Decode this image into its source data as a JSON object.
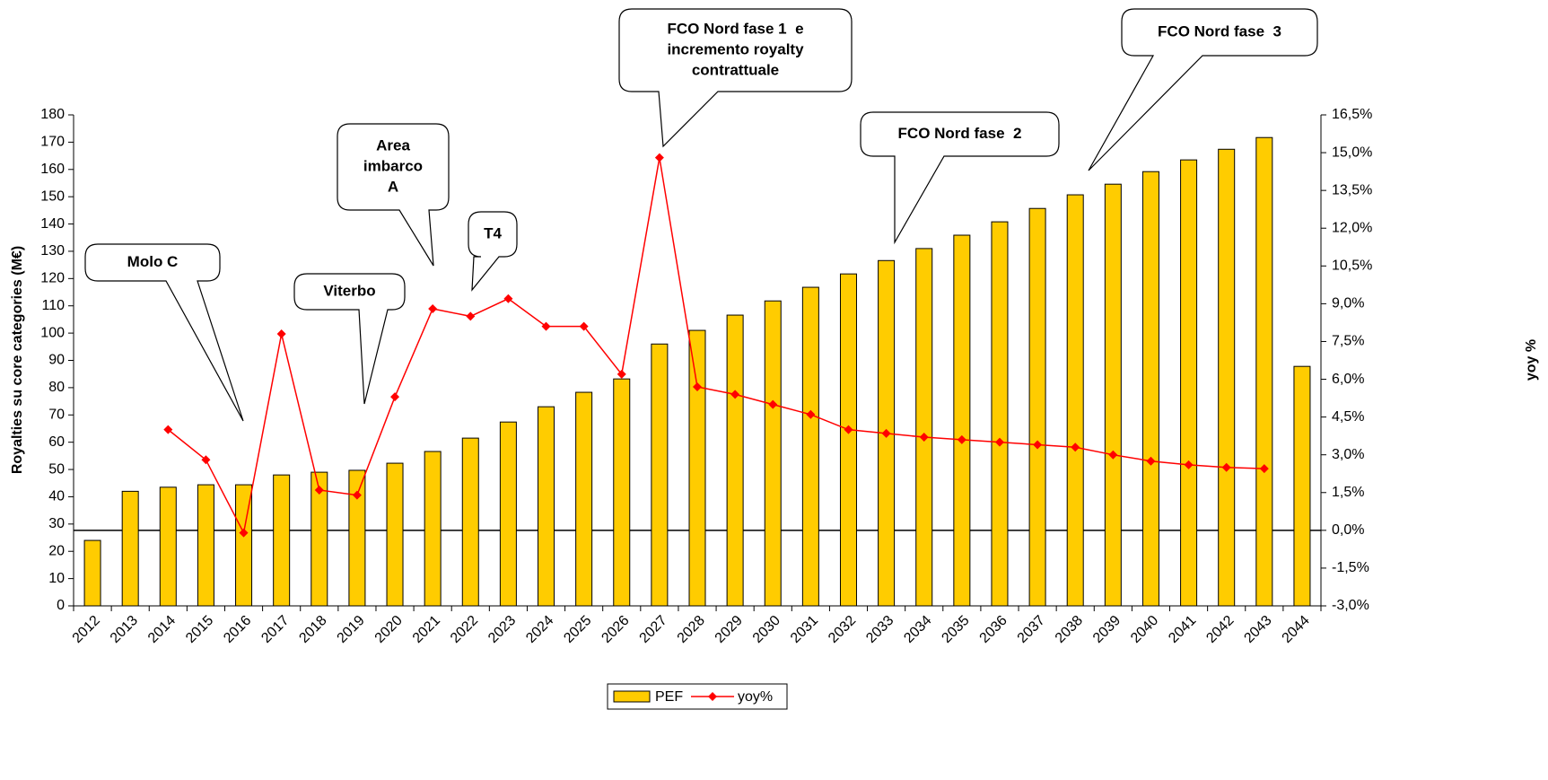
{
  "chart_data": {
    "type": "bar",
    "ylabel": "Royalties su core categories (M€)",
    "y2label": "yoy %",
    "categories": [
      "2012",
      "2013",
      "2014",
      "2015",
      "2016",
      "2017",
      "2018",
      "2019",
      "2020",
      "2021",
      "2022",
      "2023",
      "2024",
      "2025",
      "2026",
      "2027",
      "2028",
      "2029",
      "2030",
      "2031",
      "2032",
      "2033",
      "2034",
      "2035",
      "2036",
      "2037",
      "2038",
      "2039",
      "2040",
      "2041",
      "2042",
      "2043",
      "2044"
    ],
    "series": [
      {
        "name": "PEF",
        "color": "#FFCC00",
        "type": "bar",
        "values": [
          24,
          42,
          43.5,
          44.4,
          44.4,
          48,
          49,
          49.7,
          52.3,
          56.6,
          61.5,
          67.4,
          73,
          78.3,
          83.2,
          96,
          101,
          106.6,
          111.8,
          116.8,
          121.7,
          126.6,
          131,
          135.9,
          140.8,
          145.7,
          150.7,
          154.6,
          159.2,
          163.5,
          167.4,
          171.7,
          87.8
        ]
      },
      {
        "name": "yoy%",
        "color": "#FF0000",
        "type": "line",
        "axis": "y2",
        "values": [
          null,
          null,
          4.0,
          2.8,
          -0.1,
          7.8,
          1.6,
          1.4,
          5.3,
          8.8,
          8.5,
          9.2,
          8.1,
          8.1,
          6.2,
          14.8,
          5.7,
          5.4,
          5.0,
          4.6,
          4.0,
          3.85,
          3.7,
          3.6,
          3.5,
          3.4,
          3.3,
          3.0,
          2.75,
          2.6,
          2.5,
          2.45,
          null
        ]
      }
    ],
    "ylim": [
      0,
      180
    ],
    "yticks": [
      0,
      10,
      20,
      30,
      40,
      50,
      60,
      70,
      80,
      90,
      100,
      110,
      120,
      130,
      140,
      150,
      160,
      170,
      180
    ],
    "y2lim": [
      -3,
      16.5
    ],
    "y2ticks": [
      {
        "value": -3,
        "label": "-3,0%"
      },
      {
        "value": -1.5,
        "label": "-1,5%"
      },
      {
        "value": 0,
        "label": "0,0%"
      },
      {
        "value": 1.5,
        "label": "1,5%"
      },
      {
        "value": 3,
        "label": "3,0%"
      },
      {
        "value": 4.5,
        "label": "4,5%"
      },
      {
        "value": 6,
        "label": "6,0%"
      },
      {
        "value": 7.5,
        "label": "7,5%"
      },
      {
        "value": 9,
        "label": "9,0%"
      },
      {
        "value": 10.5,
        "label": "10,5%"
      },
      {
        "value": 12,
        "label": "12,0%"
      },
      {
        "value": 13.5,
        "label": "13,5%"
      },
      {
        "value": 15,
        "label": "15,0%"
      },
      {
        "value": 16.5,
        "label": "16,5%"
      }
    ],
    "legend": "bottom",
    "annotations": [
      {
        "lines": [
          "Molo C"
        ]
      },
      {
        "lines": [
          "Viterbo"
        ]
      },
      {
        "lines": [
          "Area",
          "imbarco",
          "A"
        ]
      },
      {
        "lines": [
          "T4"
        ]
      },
      {
        "lines": [
          "FCO Nord fase 1  e",
          "incremento royalty",
          "contrattuale"
        ]
      },
      {
        "lines": [
          "FCO Nord fase  2"
        ]
      },
      {
        "lines": [
          "FCO Nord fase  3"
        ]
      }
    ]
  }
}
